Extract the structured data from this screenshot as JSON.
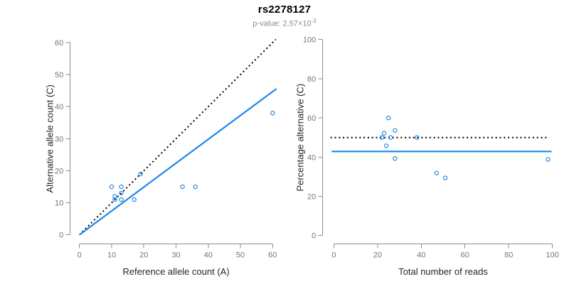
{
  "header": {
    "title": "rs2278127",
    "p_value_prefix": "p-value: 2.57×10",
    "p_value_exponent": "-3"
  },
  "colors": {
    "accent_blue": "#1e87e8",
    "dotted_black": "#000000",
    "axis_line": "#8c8c8c",
    "tick_label": "#757575",
    "axis_title": "#262626",
    "subtitle_gray": "#8c8c8c"
  },
  "chart_data": [
    {
      "type": "scatter",
      "name": "allele-counts",
      "xlabel": "Reference allele count (A)",
      "ylabel": "Alternative allele count (C)",
      "xlim": [
        0,
        60
      ],
      "ylim": [
        0,
        60
      ],
      "xticks": [
        0,
        10,
        20,
        30,
        40,
        50,
        60
      ],
      "yticks": [
        0,
        10,
        20,
        30,
        40,
        50,
        60
      ],
      "grid": false,
      "legend": "none",
      "points": [
        [
          10,
          15
        ],
        [
          11,
          11
        ],
        [
          11,
          12
        ],
        [
          13,
          11
        ],
        [
          13,
          13
        ],
        [
          13,
          15
        ],
        [
          17,
          11
        ],
        [
          19,
          19
        ],
        [
          32,
          15
        ],
        [
          36,
          15
        ],
        [
          60,
          38
        ]
      ],
      "lines": [
        {
          "name": "identity-line",
          "style": "dotted",
          "color": "#000000",
          "x1": 0,
          "y1": 0,
          "x2": 61,
          "y2": 61
        },
        {
          "name": "fit-line",
          "style": "solid",
          "color": "#1e87e8",
          "x1": 0,
          "y1": 0,
          "x2": 61.2,
          "y2": 45.6
        }
      ]
    },
    {
      "type": "scatter",
      "name": "percentage-vs-reads",
      "xlabel": "Total number of reads",
      "ylabel": "Percentage alternative (C)",
      "xlim": [
        0,
        100
      ],
      "ylim": [
        0,
        100
      ],
      "xticks": [
        0,
        20,
        40,
        60,
        80,
        100
      ],
      "yticks": [
        0,
        20,
        40,
        60,
        80,
        100
      ],
      "grid": false,
      "legend": "none",
      "points": [
        [
          22,
          50
        ],
        [
          23,
          52.2
        ],
        [
          24,
          45.8
        ],
        [
          25,
          60
        ],
        [
          26,
          50
        ],
        [
          28,
          53.6
        ],
        [
          28,
          39.3
        ],
        [
          38,
          50
        ],
        [
          47,
          31.9
        ],
        [
          51,
          29.4
        ],
        [
          98,
          38.8
        ]
      ],
      "lines": [
        {
          "name": "expected-50pct-line",
          "style": "dotted",
          "color": "#000000",
          "x1": -1.5,
          "y1": 50,
          "x2": 97.5,
          "y2": 50
        },
        {
          "name": "observed-ratio-line",
          "style": "solid",
          "color": "#1e87e8",
          "x1": -1,
          "y1": 42.9,
          "x2": 99.6,
          "y2": 42.9
        }
      ]
    }
  ]
}
